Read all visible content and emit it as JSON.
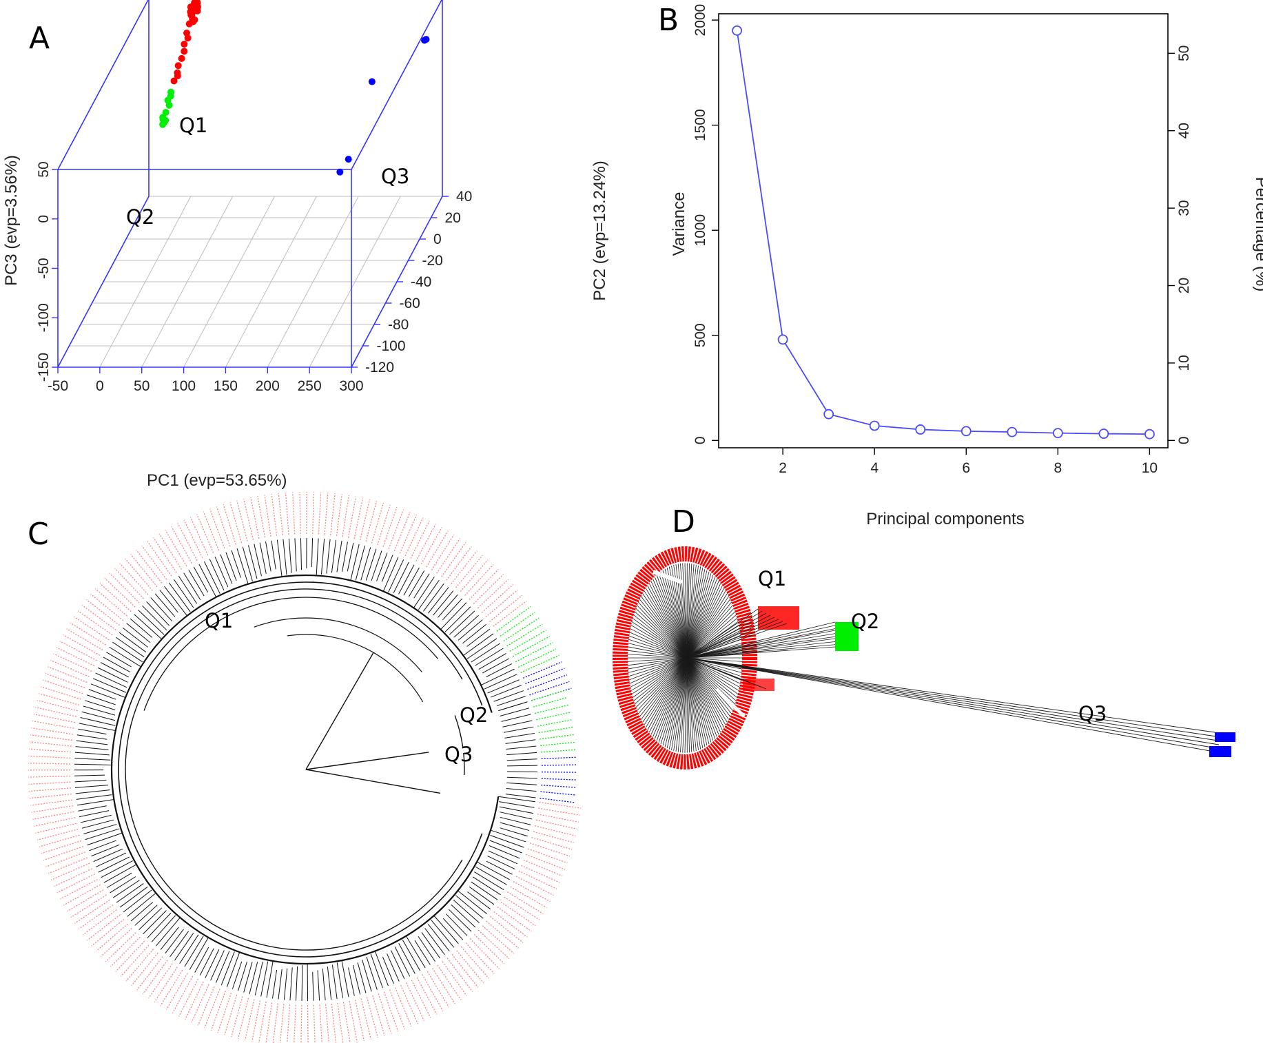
{
  "panels": {
    "a": "A",
    "b": "B",
    "c": "C",
    "d": "D"
  },
  "groups": {
    "q1": "Q1",
    "q2": "Q2",
    "q3": "Q3"
  },
  "colors": {
    "q1": "#ff0000",
    "q2": "#00ee00",
    "q3": "#0000ff",
    "axis_box": "#3333ff",
    "scree_line": "#4a4aff",
    "grid": "#bdbdbd",
    "tree": "#111111",
    "q1_tip_labels": "#ff8080"
  },
  "chart_data": [
    {
      "panel": "A",
      "type": "scatter",
      "projection": "3d",
      "xlabel": "PC1 (evp=53.65%)",
      "ylabel": "PC2 (evp=13.24%)",
      "zlabel": "PC3 (evp=3.56%)",
      "x_ticks": [
        "-50",
        "0",
        "50",
        "100",
        "150",
        "200",
        "250",
        "300"
      ],
      "y_ticks": [
        "40",
        "20",
        "0",
        "-20",
        "-40",
        "-60",
        "-80",
        "-100",
        "-120"
      ],
      "z_ticks": [
        "50",
        "0",
        "-50",
        "-100",
        "-150"
      ],
      "xlim": [
        -50,
        300
      ],
      "ylim": [
        -120,
        40
      ],
      "zlim": [
        -150,
        50
      ],
      "grid": true,
      "series": [
        {
          "name": "Q1",
          "color": "#ff0000",
          "points": [
            [
              5,
              36,
              45
            ],
            [
              7,
              37,
              47
            ],
            [
              9,
              35,
              44
            ],
            [
              4,
              34,
              48
            ],
            [
              11,
              36,
              46
            ],
            [
              6,
              38,
              43
            ],
            [
              8,
              33,
              45
            ],
            [
              10,
              37,
              49
            ],
            [
              3,
              35,
              42
            ],
            [
              12,
              34,
              44
            ],
            [
              7,
              36,
              50
            ],
            [
              5,
              33,
              41
            ],
            [
              9,
              38,
              40
            ],
            [
              4,
              36,
              38
            ],
            [
              6,
              34,
              36
            ],
            [
              8,
              35,
              34
            ],
            [
              3,
              33,
              32
            ],
            [
              5,
              37,
              30
            ],
            [
              2,
              30,
              26
            ],
            [
              4,
              29,
              22
            ],
            [
              1,
              27,
              18
            ],
            [
              3,
              24,
              14
            ],
            [
              2,
              21,
              10
            ],
            [
              0,
              18,
              6
            ],
            [
              1,
              15,
              2
            ],
            [
              -1,
              12,
              -3
            ],
            [
              2,
              14,
              0
            ]
          ]
        },
        {
          "name": "Q2",
          "color": "#00ee00",
          "points": [
            [
              -2,
              8,
              -10
            ],
            [
              -1,
              6,
              -12
            ],
            [
              -3,
              4,
              -14
            ],
            [
              -2,
              5,
              -20
            ],
            [
              -4,
              2,
              -24
            ],
            [
              -6,
              0,
              -29
            ],
            [
              -4,
              -1,
              -31
            ],
            [
              -7,
              1,
              -28
            ],
            [
              -5,
              -2,
              -32
            ],
            [
              -3,
              0,
              -30
            ]
          ]
        },
        {
          "name": "Q3",
          "color": "#0000ff",
          "points": [
            [
              280,
              38,
              10
            ],
            [
              282,
              38,
              11
            ],
            [
              250,
              -10,
              20
            ],
            [
              268,
              -78,
              15
            ],
            [
              266,
              -90,
              15
            ]
          ]
        }
      ],
      "annotations": [
        "Q1",
        "Q2",
        "Q3"
      ]
    },
    {
      "panel": "B",
      "type": "line",
      "xlabel": "Principal components",
      "ylabel": "Variance",
      "y2label": "Percentage (%)",
      "x": [
        1,
        2,
        3,
        4,
        5,
        6,
        7,
        8,
        9,
        10
      ],
      "series": [
        {
          "values": [
            1950,
            480,
            125,
            70,
            52,
            44,
            40,
            35,
            32,
            30
          ]
        }
      ],
      "xlim": [
        0.6,
        10.4
      ],
      "ylim": [
        -35,
        2030
      ],
      "y2lim": [
        -0.95,
        55.1
      ],
      "x_ticks": [
        2,
        4,
        6,
        8,
        10
      ],
      "y_ticks": [
        0,
        500,
        1000,
        1500,
        2000
      ],
      "y2_ticks": [
        0,
        10,
        20,
        30,
        40,
        50
      ],
      "grid": false,
      "marker": "open-circle"
    }
  ]
}
